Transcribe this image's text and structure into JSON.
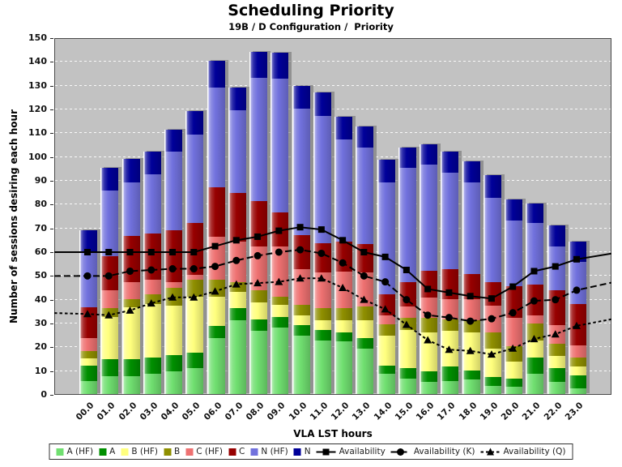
{
  "header": {
    "title": "Scheduling Priority",
    "subtitle": "19B / D Configuration /  Priority"
  },
  "colors": {
    "plot_background": "#C2C2C2",
    "page_background": "#FFFFFF",
    "gridline": "#FFFFFF",
    "line_color": "#000000"
  },
  "chart_data": {
    "type": "bar",
    "stacked": true,
    "title": "Scheduling Priority",
    "subtitle": "19B / D Configuration /  Priority",
    "xlabel": "VLA LST hours",
    "ylabel": "Number of sessions desiring each hour",
    "ylim": [
      0,
      150
    ],
    "ytick_step": 10,
    "grid": "horizontal-dashed-white-on-gray",
    "legend_position": "bottom",
    "categories": [
      "00.0",
      "01.0",
      "02.0",
      "03.0",
      "04.0",
      "05.0",
      "06.0",
      "07.0",
      "08.0",
      "09.0",
      "10.0",
      "11.0",
      "12.0",
      "13.0",
      "14.0",
      "15.0",
      "16.0",
      "17.0",
      "18.0",
      "19.0",
      "20.0",
      "21.0",
      "22.0",
      "23.0"
    ],
    "bar_series": [
      {
        "name": "A (HF)",
        "color": "#70DF70",
        "values": [
          5.5,
          7.5,
          7.5,
          8.5,
          9.5,
          11,
          23.5,
          31,
          26.5,
          28,
          24.5,
          22.5,
          22,
          19,
          8.5,
          6.5,
          5,
          5.5,
          6,
          3.5,
          3,
          8.5,
          5,
          2.5
        ]
      },
      {
        "name": "A",
        "color": "#008F00",
        "values": [
          6.5,
          7,
          7,
          7,
          7,
          6.5,
          5,
          5,
          5,
          4.5,
          4.5,
          4.5,
          4,
          4.5,
          3.5,
          4.5,
          4.5,
          6,
          4,
          3.5,
          3.5,
          7,
          6,
          5.5
        ]
      },
      {
        "name": "B (HF)",
        "color": "#FFFF7E",
        "values": [
          3,
          18,
          22,
          22.5,
          20.5,
          23.5,
          12.5,
          7,
          7,
          5,
          4,
          4,
          5,
          7.5,
          12.5,
          16,
          16.5,
          15,
          16,
          12,
          7,
          7,
          5,
          3.5
        ]
      },
      {
        "name": "B",
        "color": "#8F8F00",
        "values": [
          3,
          3.5,
          3.5,
          4,
          7.5,
          7,
          7,
          4,
          5,
          3.5,
          4.5,
          5,
          5,
          6,
          5,
          5,
          6,
          5,
          5,
          7,
          6.5,
          7,
          5,
          4
        ]
      },
      {
        "name": "C (HF)",
        "color": "#EE7171",
        "values": [
          5.5,
          7.5,
          7,
          6,
          2.5,
          2,
          18,
          17,
          18.5,
          21,
          15,
          15,
          15.5,
          14,
          3.5,
          5,
          8.5,
          8.5,
          9,
          11,
          12,
          3.5,
          8,
          5
        ]
      },
      {
        "name": "C",
        "color": "#970000",
        "values": [
          13,
          14.5,
          19.5,
          19.5,
          22,
          22,
          21,
          20.5,
          19,
          14.5,
          14.5,
          12.5,
          12.5,
          12,
          9,
          10,
          11.5,
          12.5,
          10.5,
          10,
          13.5,
          13,
          14.5,
          17.5
        ]
      },
      {
        "name": "N (HF)",
        "color": "#7171DD",
        "values": [
          23,
          27.5,
          22.5,
          25,
          33,
          37,
          42,
          35,
          52,
          56,
          53,
          53.5,
          43,
          40.5,
          47,
          48,
          44.5,
          40.5,
          38.5,
          35.5,
          27.5,
          26,
          18.5,
          17.5
        ]
      },
      {
        "name": "N",
        "color": "#000099",
        "values": [
          9.5,
          9.5,
          10,
          9.5,
          9,
          10,
          11,
          9.5,
          11,
          11,
          9.5,
          10,
          9.5,
          9,
          9.5,
          8.5,
          8.5,
          9,
          9,
          9.5,
          9,
          8,
          9,
          8.5
        ]
      }
    ],
    "line_series": [
      {
        "name": "Availability",
        "marker": "square",
        "dash": "solid",
        "color": "#000000",
        "values": [
          60,
          60,
          60,
          60,
          60,
          60,
          62.5,
          65,
          66.5,
          69,
          70.5,
          69.5,
          65,
          60,
          58,
          52.5,
          44.5,
          43,
          41.5,
          40.5,
          45.5,
          52,
          54,
          57
        ]
      },
      {
        "name": "Availability (K)",
        "marker": "circle",
        "dash": "dashed",
        "color": "#000000",
        "values": [
          50,
          50,
          52,
          52.5,
          53,
          53,
          54,
          56.5,
          58.5,
          60,
          61,
          59.5,
          55.5,
          50,
          47.5,
          40,
          33.5,
          32.5,
          31,
          32,
          34.5,
          39.5,
          40,
          44
        ]
      },
      {
        "name": "Availability (Q)",
        "marker": "triangle",
        "dash": "dotted",
        "color": "#000000",
        "values": [
          34,
          33.5,
          35.5,
          38.5,
          41,
          41,
          43.5,
          46.5,
          47,
          47.5,
          49,
          49,
          45,
          40,
          36,
          29.5,
          23,
          19,
          18.5,
          17,
          19.5,
          23.5,
          25.5,
          29
        ]
      }
    ]
  }
}
